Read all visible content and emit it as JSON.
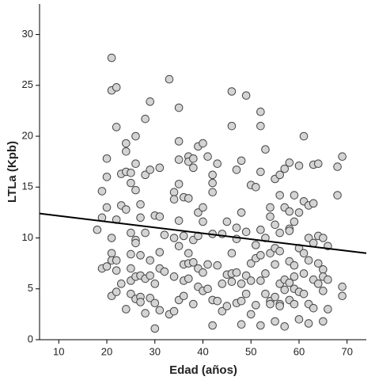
{
  "chart_data": {
    "type": "scatter",
    "x_label": "Edad (años)",
    "y_label": "LTLa (Kpb)",
    "xlim": [
      6,
      74
    ],
    "ylim": [
      0,
      33
    ],
    "xticks": [
      10,
      20,
      30,
      40,
      50,
      60,
      70
    ],
    "yticks": [
      0,
      5,
      10,
      15,
      20,
      25,
      30
    ],
    "color": "#d4d4d4",
    "x": [
      18,
      19,
      19,
      19,
      20,
      20,
      20,
      20,
      21,
      21,
      21,
      21,
      21,
      21,
      22,
      22,
      22,
      22,
      22,
      22,
      23,
      23,
      23,
      24,
      24,
      24,
      24,
      24,
      25,
      25,
      25,
      25,
      25,
      25,
      25,
      26,
      26,
      26,
      26,
      26,
      26,
      26,
      27,
      27,
      27,
      27,
      27,
      27,
      28,
      28,
      28,
      28,
      28,
      29,
      29,
      29,
      29,
      29,
      30,
      30,
      30,
      30,
      31,
      31,
      31,
      31,
      31,
      32,
      32,
      33,
      33,
      34,
      34,
      34,
      34,
      34,
      35,
      35,
      35,
      35,
      35,
      35,
      35,
      36,
      36,
      36,
      36,
      36,
      37,
      37,
      37,
      37,
      37,
      37,
      38,
      38,
      38,
      38,
      38,
      39,
      39,
      39,
      39,
      39,
      40,
      40,
      40,
      40,
      40,
      41,
      41,
      41,
      42,
      42,
      42,
      42,
      42,
      42,
      43,
      43,
      43,
      44,
      44,
      44,
      45,
      45,
      45,
      46,
      46,
      46,
      46,
      46,
      47,
      47,
      47,
      47,
      47,
      48,
      48,
      48,
      48,
      48,
      49,
      49,
      49,
      49,
      50,
      50,
      50,
      50,
      51,
      51,
      51,
      51,
      52,
      52,
      52,
      52,
      52,
      52,
      52,
      53,
      53,
      53,
      53,
      54,
      54,
      54,
      54,
      54,
      55,
      55,
      55,
      55,
      55,
      55,
      56,
      56,
      56,
      56,
      56,
      56,
      56,
      57,
      57,
      57,
      57,
      57,
      58,
      58,
      58,
      58,
      58,
      58,
      58,
      59,
      59,
      59,
      59,
      59,
      59,
      60,
      60,
      60,
      60,
      60,
      61,
      61,
      61,
      61,
      61,
      62,
      62,
      62,
      62,
      62,
      63,
      63,
      63,
      63,
      63,
      64,
      64,
      64,
      64,
      65,
      65,
      65,
      65,
      65,
      66,
      66,
      66,
      68,
      68,
      69,
      69,
      69
    ],
    "y": [
      10.8,
      14.6,
      12,
      7,
      17.8,
      16,
      13,
      7.2,
      27.7,
      24.5,
      10,
      8.5,
      7.8,
      4.3,
      24.8,
      20.9,
      11.8,
      7.8,
      6.8,
      4.7,
      16.3,
      13.2,
      5.5,
      19.3,
      18.5,
      16.5,
      12.8,
      3,
      16.4,
      15.4,
      10.5,
      8.4,
      7,
      5.8,
      4.5,
      20,
      17.3,
      14.7,
      9.8,
      9.5,
      6.2,
      4,
      13.3,
      12,
      8.3,
      6.3,
      4.2,
      3.7,
      21.7,
      16.2,
      10.5,
      6,
      2.6,
      23.4,
      16.7,
      7.8,
      6.3,
      4.1,
      12.2,
      5.5,
      3.6,
      1.1,
      16.9,
      12.1,
      8.6,
      7,
      2.9,
      10.3,
      6.7,
      25.6,
      2.5,
      14.5,
      13.8,
      10,
      6.2,
      2.8,
      22.8,
      19.5,
      17.7,
      15.3,
      11.7,
      9.2,
      3.9,
      14,
      10.2,
      7.4,
      5.8,
      4.3,
      18,
      17.5,
      13.9,
      8.5,
      7.5,
      6,
      17.8,
      16.9,
      9.8,
      7.6,
      3.5,
      19,
      12.5,
      10.2,
      7,
      5.2,
      19.3,
      13,
      11.6,
      6.6,
      4.8,
      18,
      7.4,
      5,
      16.2,
      15.4,
      14.5,
      10.4,
      3.9,
      1.4,
      17.3,
      7.3,
      3.8,
      10.4,
      5.5,
      2.8,
      11.6,
      6.4,
      3.3,
      24.4,
      21,
      8.5,
      6.5,
      5.7,
      16.7,
      11,
      9.9,
      6.6,
      3.6,
      17.6,
      12.5,
      5.5,
      3.8,
      1.5,
      24,
      10.6,
      6.3,
      4.5,
      15.2,
      7.5,
      5.8,
      2.5,
      15,
      9.3,
      8,
      3.4,
      22.4,
      21,
      16.5,
      10.8,
      8.3,
      5.8,
      1.4,
      18.7,
      10,
      6.5,
      4.5,
      13,
      12.1,
      8.5,
      3.8,
      3.5,
      15.8,
      11.3,
      9,
      7.4,
      4.2,
      1.8,
      16.2,
      14.2,
      10.5,
      8.7,
      5.5,
      3.5,
      3.3,
      16.8,
      13,
      5.9,
      4.9,
      1.3,
      17.4,
      12.6,
      10.9,
      10.7,
      7.7,
      5.6,
      3.9,
      14.2,
      11.6,
      7.3,
      6.2,
      5,
      3.5,
      17.1,
      12.5,
      9,
      4.7,
      2,
      20,
      13.6,
      8.5,
      6.5,
      4.5,
      13.2,
      10,
      7.8,
      3.5,
      1.6,
      17.2,
      13.4,
      9.5,
      5.9,
      3.1,
      17.3,
      10.2,
      7.5,
      5.5,
      10,
      6.9,
      6.2,
      4.8,
      1.8,
      9.2,
      5.9,
      3,
      17,
      14.2,
      18,
      5.2,
      4.3
    ],
    "fit_line": {
      "x": [
        6,
        74
      ],
      "y": [
        12.4,
        8.5
      ],
      "color": "#000000"
    }
  }
}
